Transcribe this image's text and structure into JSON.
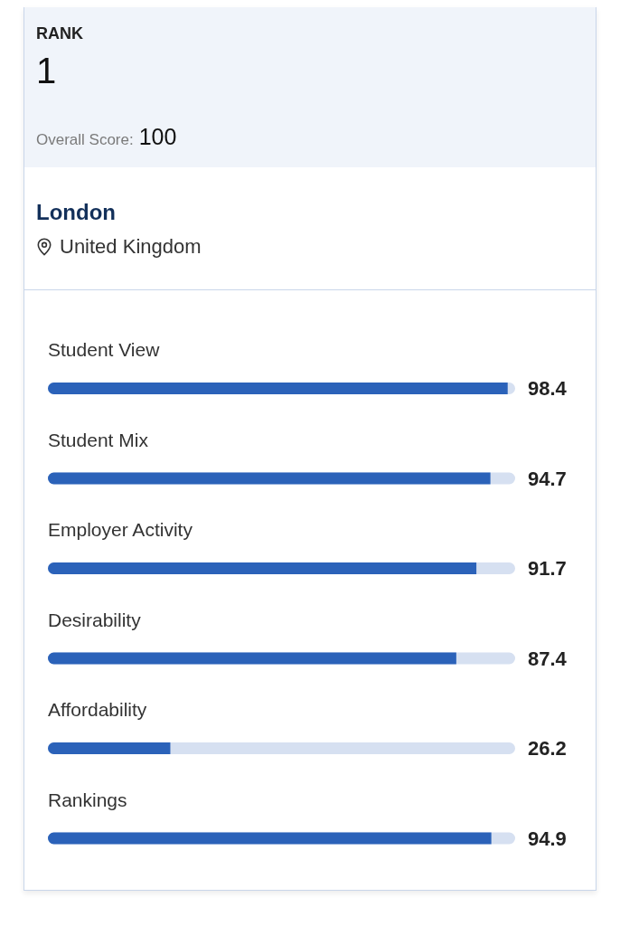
{
  "chart_data": {
    "type": "bar",
    "orientation": "horizontal",
    "title": "London",
    "subtitle": "United Kingdom",
    "annotations": [
      "RANK",
      "1",
      "Overall Score:",
      "100"
    ],
    "categories": [
      "Student View",
      "Student Mix",
      "Employer Activity",
      "Desirability",
      "Affordability",
      "Rankings"
    ],
    "values": [
      98.4,
      94.7,
      91.7,
      87.4,
      26.2,
      94.9
    ],
    "color": "#2b62b9",
    "xlim": [
      0,
      100
    ],
    "data_labels": true,
    "tick_labels": "y"
  }
}
